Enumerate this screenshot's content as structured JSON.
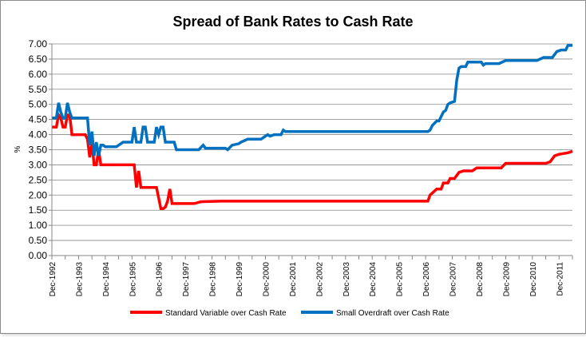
{
  "chart_data": {
    "type": "line",
    "title": "Spread of Bank Rates to Cash Rate",
    "ylabel": "%",
    "xlabel": "",
    "ylim": [
      0,
      7
    ],
    "yticks": [
      "0.00",
      "0.50",
      "1.00",
      "1.50",
      "2.00",
      "2.50",
      "3.00",
      "3.50",
      "4.00",
      "4.50",
      "5.00",
      "5.50",
      "6.00",
      "6.50",
      "7.00"
    ],
    "x_tick_labels": [
      "Dec-1992",
      "Dec-1993",
      "Dec-1994",
      "Dec-1995",
      "Dec-1996",
      "Dec-1997",
      "Dec-1998",
      "Dec-1999",
      "Dec-2000",
      "Dec-2001",
      "Dec-2002",
      "Dec-2003",
      "Dec-2004",
      "Dec-2005",
      "Dec-2006",
      "Dec-2007",
      "Dec-2008",
      "Dec-2009",
      "Dec-2010",
      "Dec-2011"
    ],
    "xlim": [
      "1992-12",
      "2012-06"
    ],
    "grid": {
      "horizontal": true,
      "vertical": false
    },
    "legend_position": "bottom",
    "series": [
      {
        "name": "Standard Variable over Cash Rate",
        "color": "#ff0000",
        "points": [
          [
            "1992-12",
            4.25
          ],
          [
            "1993-02",
            4.25
          ],
          [
            "1993-03",
            4.65
          ],
          [
            "1993-04",
            4.55
          ],
          [
            "1993-05",
            4.25
          ],
          [
            "1993-06",
            4.25
          ],
          [
            "1993-07",
            4.65
          ],
          [
            "1993-08",
            4.65
          ],
          [
            "1993-09",
            4.0
          ],
          [
            "1994-02",
            4.0
          ],
          [
            "1994-03",
            4.0
          ],
          [
            "1994-04",
            3.85
          ],
          [
            "1994-05",
            3.25
          ],
          [
            "1994-06",
            3.7
          ],
          [
            "1994-07",
            3.0
          ],
          [
            "1994-08",
            3.0
          ],
          [
            "1994-09",
            3.5
          ],
          [
            "1994-10",
            3.0
          ],
          [
            "1995-12",
            3.0
          ],
          [
            "1996-01",
            3.0
          ],
          [
            "1996-02",
            2.25
          ],
          [
            "1996-03",
            2.8
          ],
          [
            "1996-04",
            2.25
          ],
          [
            "1996-06",
            2.25
          ],
          [
            "1996-09",
            2.25
          ],
          [
            "1996-11",
            2.25
          ],
          [
            "1997-01",
            1.55
          ],
          [
            "1997-02",
            1.55
          ],
          [
            "1997-03",
            1.6
          ],
          [
            "1997-04",
            1.8
          ],
          [
            "1997-05",
            2.2
          ],
          [
            "1997-06",
            1.72
          ],
          [
            "1998-01",
            1.72
          ],
          [
            "1998-04",
            1.72
          ],
          [
            "1998-07",
            1.78
          ],
          [
            "1999-04",
            1.8
          ],
          [
            "1999-12",
            1.8
          ],
          [
            "2001-01",
            1.8
          ],
          [
            "2006-12",
            1.8
          ],
          [
            "2007-01",
            1.8
          ],
          [
            "2007-02",
            2.0
          ],
          [
            "2007-05",
            2.2
          ],
          [
            "2007-07",
            2.2
          ],
          [
            "2007-08",
            2.4
          ],
          [
            "2007-10",
            2.4
          ],
          [
            "2007-11",
            2.55
          ],
          [
            "2008-01",
            2.55
          ],
          [
            "2008-03",
            2.75
          ],
          [
            "2008-05",
            2.8
          ],
          [
            "2008-09",
            2.8
          ],
          [
            "2008-11",
            2.9
          ],
          [
            "2009-03",
            2.9
          ],
          [
            "2009-10",
            2.9
          ],
          [
            "2009-12",
            3.05
          ],
          [
            "2010-06",
            3.05
          ],
          [
            "2011-06",
            3.05
          ],
          [
            "2011-08",
            3.1
          ],
          [
            "2011-10",
            3.3
          ],
          [
            "2011-12",
            3.35
          ],
          [
            "2012-04",
            3.4
          ],
          [
            "2012-06",
            3.45
          ]
        ]
      },
      {
        "name": "Small Overdraft over Cash Rate",
        "color": "#0070c0",
        "points": [
          [
            "1992-12",
            4.55
          ],
          [
            "1993-02",
            4.55
          ],
          [
            "1993-03",
            5.05
          ],
          [
            "1993-04",
            4.75
          ],
          [
            "1993-05",
            4.55
          ],
          [
            "1993-06",
            4.55
          ],
          [
            "1993-07",
            5.05
          ],
          [
            "1993-08",
            4.75
          ],
          [
            "1993-09",
            4.55
          ],
          [
            "1994-02",
            4.55
          ],
          [
            "1994-03",
            4.55
          ],
          [
            "1994-04",
            4.55
          ],
          [
            "1994-05",
            3.65
          ],
          [
            "1994-06",
            4.1
          ],
          [
            "1994-07",
            3.3
          ],
          [
            "1994-08",
            3.75
          ],
          [
            "1994-09",
            3.3
          ],
          [
            "1994-10",
            3.65
          ],
          [
            "1994-11",
            3.65
          ],
          [
            "1994-12",
            3.6
          ],
          [
            "1995-05",
            3.6
          ],
          [
            "1995-06",
            3.65
          ],
          [
            "1995-08",
            3.75
          ],
          [
            "1995-10",
            3.75
          ],
          [
            "1995-12",
            3.75
          ],
          [
            "1996-01",
            4.25
          ],
          [
            "1996-02",
            3.75
          ],
          [
            "1996-03",
            3.75
          ],
          [
            "1996-04",
            3.75
          ],
          [
            "1996-05",
            4.25
          ],
          [
            "1996-06",
            4.25
          ],
          [
            "1996-07",
            3.75
          ],
          [
            "1996-08",
            3.75
          ],
          [
            "1996-09",
            3.75
          ],
          [
            "1996-10",
            3.75
          ],
          [
            "1996-11",
            4.25
          ],
          [
            "1996-12",
            4.0
          ],
          [
            "1997-01",
            4.25
          ],
          [
            "1997-02",
            4.25
          ],
          [
            "1997-03",
            3.75
          ],
          [
            "1997-04",
            3.75
          ],
          [
            "1997-05",
            3.75
          ],
          [
            "1997-07",
            3.75
          ],
          [
            "1997-08",
            3.5
          ],
          [
            "1998-06",
            3.5
          ],
          [
            "1998-08",
            3.65
          ],
          [
            "1998-09",
            3.55
          ],
          [
            "1999-06",
            3.55
          ],
          [
            "1999-07",
            3.5
          ],
          [
            "1999-09",
            3.65
          ],
          [
            "1999-12",
            3.7
          ],
          [
            "2000-01",
            3.75
          ],
          [
            "2000-04",
            3.85
          ],
          [
            "2000-10",
            3.85
          ],
          [
            "2000-12",
            3.95
          ],
          [
            "2001-01",
            4.0
          ],
          [
            "2001-02",
            3.95
          ],
          [
            "2001-04",
            4.0
          ],
          [
            "2001-07",
            4.0
          ],
          [
            "2001-08",
            4.15
          ],
          [
            "2001-09",
            4.1
          ],
          [
            "2006-12",
            4.1
          ],
          [
            "2007-01",
            4.1
          ],
          [
            "2007-02",
            4.15
          ],
          [
            "2007-03",
            4.3
          ],
          [
            "2007-05",
            4.45
          ],
          [
            "2007-06",
            4.45
          ],
          [
            "2007-07",
            4.6
          ],
          [
            "2007-08",
            4.75
          ],
          [
            "2007-09",
            4.8
          ],
          [
            "2007-10",
            5.0
          ],
          [
            "2007-11",
            5.05
          ],
          [
            "2008-01",
            5.1
          ],
          [
            "2008-02",
            5.8
          ],
          [
            "2008-03",
            6.2
          ],
          [
            "2008-04",
            6.25
          ],
          [
            "2008-06",
            6.25
          ],
          [
            "2008-07",
            6.4
          ],
          [
            "2008-09",
            6.4
          ],
          [
            "2008-12",
            6.4
          ],
          [
            "2009-01",
            6.4
          ],
          [
            "2009-02",
            6.3
          ],
          [
            "2009-03",
            6.35
          ],
          [
            "2009-06",
            6.35
          ],
          [
            "2009-09",
            6.35
          ],
          [
            "2009-12",
            6.45
          ],
          [
            "2010-06",
            6.45
          ],
          [
            "2010-11",
            6.45
          ],
          [
            "2011-02",
            6.45
          ],
          [
            "2011-05",
            6.55
          ],
          [
            "2011-09",
            6.55
          ],
          [
            "2011-11",
            6.75
          ],
          [
            "2012-01",
            6.8
          ],
          [
            "2012-03",
            6.8
          ],
          [
            "2012-04",
            6.95
          ],
          [
            "2012-06",
            6.95
          ]
        ]
      }
    ]
  }
}
